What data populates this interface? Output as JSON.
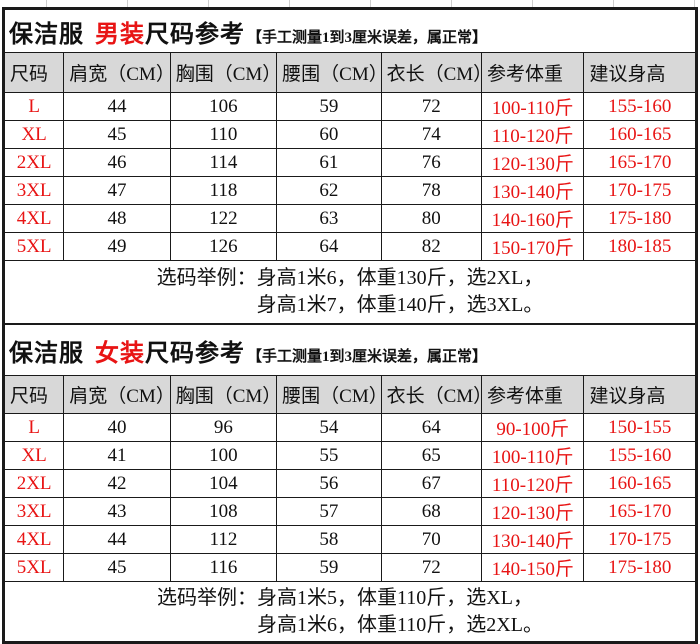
{
  "colors": {
    "red": "#e81414",
    "header-bg": "#d8d8d8",
    "border": "#1a1a1a",
    "gridline": "#cfcfcf"
  },
  "men": {
    "title_product": "保洁服",
    "title_gender": "男装",
    "title_suffix": "尺码参考",
    "title_note": "【手工测量1到3厘米误差，属正常】",
    "headers": [
      "尺码",
      "肩宽（CM）",
      "胸围（CM）",
      "腰围（CM）",
      "衣长（CM）",
      "参考体重",
      "建议身高"
    ],
    "rows": [
      [
        "L",
        "44",
        "106",
        "59",
        "72",
        "100-110斤",
        "155-160"
      ],
      [
        "XL",
        "45",
        "110",
        "60",
        "74",
        "110-120斤",
        "160-165"
      ],
      [
        "2XL",
        "46",
        "114",
        "61",
        "76",
        "120-130斤",
        "165-170"
      ],
      [
        "3XL",
        "47",
        "118",
        "62",
        "78",
        "130-140斤",
        "170-175"
      ],
      [
        "4XL",
        "48",
        "122",
        "63",
        "80",
        "140-160斤",
        "175-180"
      ],
      [
        "5XL",
        "49",
        "126",
        "64",
        "82",
        "150-170斤",
        "180-185"
      ]
    ],
    "note_line1": "选码举例：身高1米6，体重130斤，选2XL，",
    "note_line2": "身高1米7，体重140斤，选3XL。"
  },
  "women": {
    "title_product": "保洁服",
    "title_gender": "女装",
    "title_suffix": "尺码参考",
    "title_note": "【手工测量1到3厘米误差，属正常】",
    "headers": [
      "尺码",
      "肩宽（CM）",
      "胸围（CM）",
      "腰围（CM）",
      "衣长（CM）",
      "参考体重",
      "建议身高"
    ],
    "rows": [
      [
        "L",
        "40",
        "96",
        "54",
        "64",
        "90-100斤",
        "150-155"
      ],
      [
        "XL",
        "41",
        "100",
        "55",
        "65",
        "100-110斤",
        "155-160"
      ],
      [
        "2XL",
        "42",
        "104",
        "56",
        "67",
        "110-120斤",
        "160-165"
      ],
      [
        "3XL",
        "43",
        "108",
        "57",
        "68",
        "120-130斤",
        "165-170"
      ],
      [
        "4XL",
        "44",
        "112",
        "58",
        "70",
        "130-140斤",
        "170-175"
      ],
      [
        "5XL",
        "45",
        "116",
        "59",
        "72",
        "140-150斤",
        "175-180"
      ]
    ],
    "note_line1": "选码举例：身高1米5，体重110斤，选XL，",
    "note_line2": "身高1米6，体重110斤，选2XL。"
  }
}
